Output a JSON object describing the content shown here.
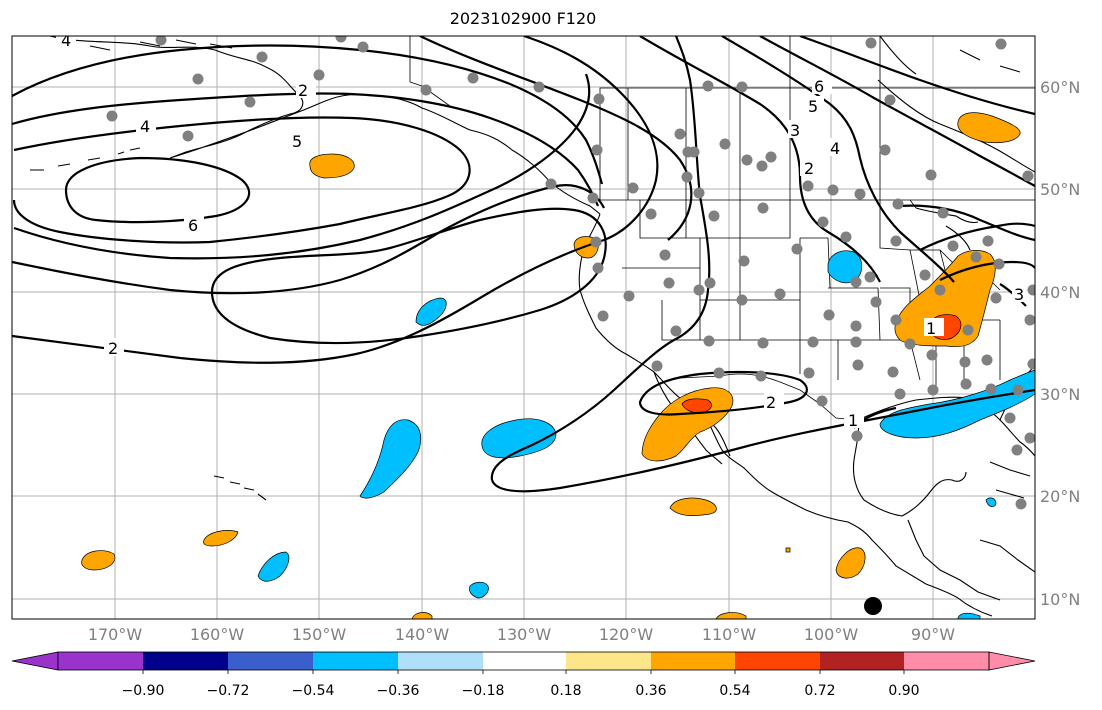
{
  "title": "2023102900 F120",
  "lon_labels": [
    "170°W",
    "160°W",
    "150°W",
    "140°W",
    "130°W",
    "120°W",
    "110°W",
    "100°W",
    "90°W"
  ],
  "lat_labels": [
    "60°N",
    "50°N",
    "40°N",
    "30°N",
    "20°N",
    "10°N"
  ],
  "colorbar": {
    "tick_labels": [
      "−0.90",
      "−0.72",
      "−0.54",
      "−0.36",
      "−0.18",
      "0.18",
      "0.36",
      "0.54",
      "0.72",
      "0.90"
    ],
    "colors": [
      "#9933cc",
      "#00008b",
      "#3a5fcd",
      "#00bfff",
      "#b0e0f8",
      "#ffffff",
      "#fde68a",
      "#ffa500",
      "#ff4500",
      "#b22222",
      "#ff8ca8"
    ]
  },
  "contour_labels": [
    "4",
    "4",
    "5",
    "6",
    "2",
    "6",
    "5",
    "3",
    "2",
    "1",
    "2",
    "1",
    "3",
    "4",
    "2"
  ],
  "map": {
    "lon_range": [
      "180°W",
      "80°W"
    ],
    "lat_range": [
      "8°N",
      "65°N"
    ],
    "station_dot_color": "#808080",
    "marker_color": "#000000"
  }
}
